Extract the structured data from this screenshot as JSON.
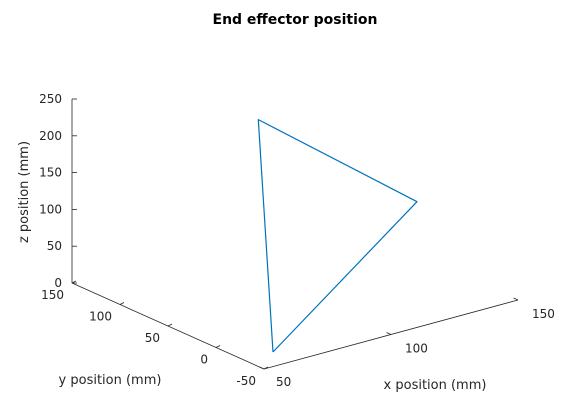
{
  "chart_data": {
    "type": "line",
    "title": "End effector position",
    "xlabel": "x position (mm)",
    "ylabel": "y position (mm)",
    "zlabel": "z position (mm)",
    "xlim": [
      50,
      150
    ],
    "ylim": [
      -50,
      150
    ],
    "zlim": [
      0,
      250
    ],
    "xticks": [
      "50",
      "100",
      "150"
    ],
    "yticks": [
      "-50",
      "0",
      "50",
      "100",
      "150"
    ],
    "zticks": [
      "0",
      "50",
      "100",
      "150",
      "200",
      "250"
    ],
    "grid": false,
    "series": [
      {
        "color": "#0072BD",
        "x": [
          61.5,
          141.6,
          103.7,
          61.5
        ],
        "y": [
          -29.0,
          33.0,
          98.0,
          -29.0
        ],
        "z": [
          0.0,
          93.0,
          202.0,
          0.0
        ]
      }
    ]
  }
}
